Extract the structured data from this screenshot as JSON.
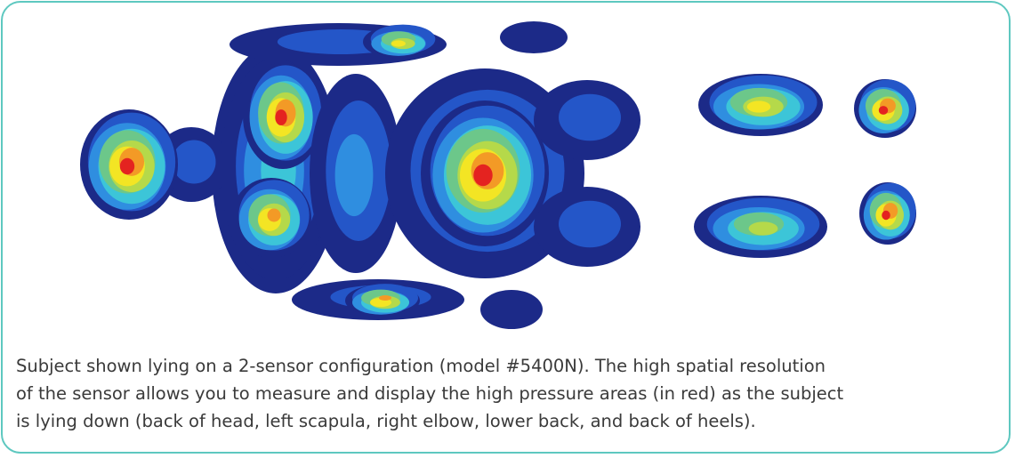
{
  "caption": {
    "lines": [
      "Subject shown lying on a 2-sensor configuration (model #5400N).  The high spatial resolution",
      "of the sensor allows you to measure and display the high pressure areas (in red) as the subject",
      "is lying down (back of head, left scapula, right elbow, lower back, and back of heels)."
    ]
  }
}
